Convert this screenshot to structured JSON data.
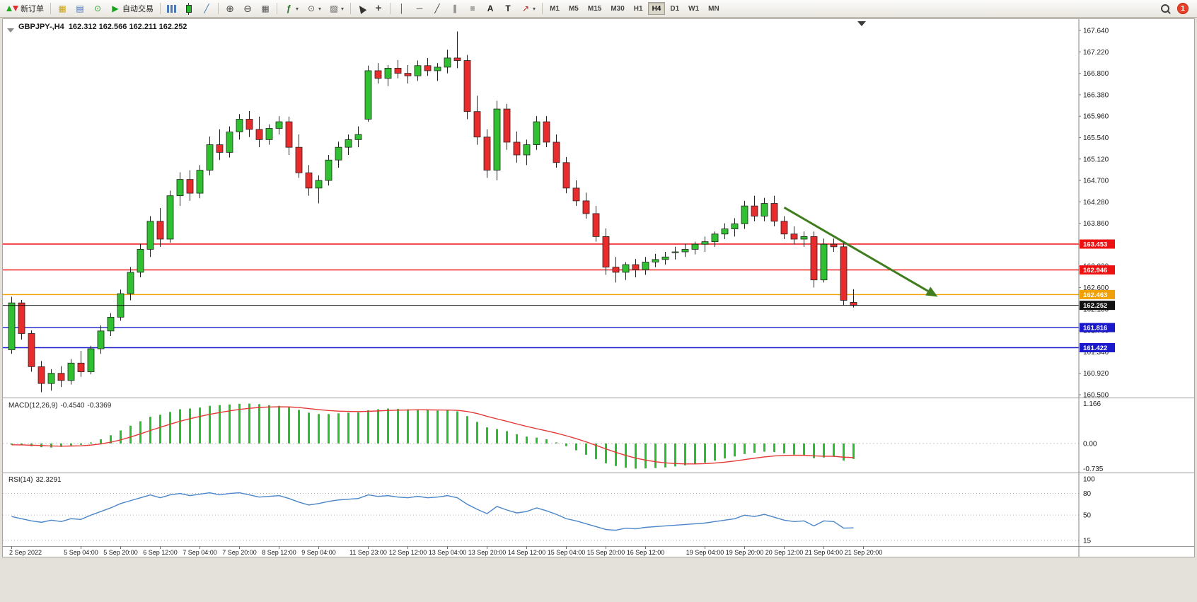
{
  "toolbar": {
    "new_order_label": "新订单",
    "autotrading_label": "自动交易",
    "timeframes": [
      "M1",
      "M5",
      "M15",
      "M30",
      "H1",
      "H4",
      "D1",
      "W1",
      "MN"
    ],
    "active_timeframe": "H4",
    "notification_count": "1",
    "icons": {
      "charts": "▦",
      "profiles": "▤",
      "history": "⊙",
      "play": "▶",
      "line_chart": "╱",
      "zoom_in": "⊕",
      "zoom_out": "⊖",
      "tile": "▦",
      "indicators": "ƒ",
      "periods": "⊙",
      "templates": "▨",
      "crosshair": "+",
      "vline": "│",
      "hline": "─",
      "trendline": "╱",
      "channel": "∥",
      "fibonacci": "≡",
      "text": "A",
      "label": "T",
      "arrows": "↗",
      "caret": "▾"
    }
  },
  "chart": {
    "symbol_title": "GBPJPY-,H4",
    "ohlc_text": "162.312 162.566 162.211 162.252"
  },
  "chart_data": {
    "type": "candlestick",
    "symbol": "GBPJPY-",
    "timeframe": "H4",
    "title": "GBPJPY-,H4 162.312 162.566 162.211 162.252",
    "up_color": "#2fc12f",
    "down_color": "#ea2b2b",
    "wick_color": "#222222",
    "price_axis": {
      "min": 160.5,
      "max": 167.64,
      "step": 0.42,
      "labels": [
        "167.640",
        "167.220",
        "166.800",
        "166.380",
        "165.960",
        "165.540",
        "165.120",
        "164.700",
        "164.280",
        "163.860",
        "163.440",
        "163.020",
        "162.600",
        "162.180",
        "161.760",
        "161.340",
        "160.920",
        "160.500"
      ]
    },
    "time_labels": [
      [
        0,
        "2 Sep 2022"
      ],
      [
        7,
        "5 Sep 04:00"
      ],
      [
        11,
        "5 Sep 20:00"
      ],
      [
        15,
        "6 Sep 12:00"
      ],
      [
        19,
        "7 Sep 04:00"
      ],
      [
        23,
        "7 Sep 20:00"
      ],
      [
        27,
        "8 Sep 12:00"
      ],
      [
        31,
        "9 Sep 04:00"
      ],
      [
        36,
        "11 Sep 23:00"
      ],
      [
        40,
        "12 Sep 12:00"
      ],
      [
        44,
        "13 Sep 04:00"
      ],
      [
        48,
        "13 Sep 20:00"
      ],
      [
        52,
        "14 Sep 12:00"
      ],
      [
        56,
        "15 Sep 04:00"
      ],
      [
        60,
        "15 Sep 20:00"
      ],
      [
        64,
        "16 Sep 12:00"
      ],
      [
        70,
        "19 Sep 04:00"
      ],
      [
        74,
        "19 Sep 20:00"
      ],
      [
        78,
        "20 Sep 12:00"
      ],
      [
        82,
        "21 Sep 04:00"
      ],
      [
        86,
        "21 Sep 20:00"
      ]
    ],
    "candles": [
      [
        161.38,
        162.42,
        161.3,
        162.3
      ],
      [
        162.3,
        162.36,
        161.58,
        161.7
      ],
      [
        161.7,
        161.76,
        160.95,
        161.05
      ],
      [
        161.05,
        161.16,
        160.55,
        160.72
      ],
      [
        160.72,
        161.0,
        160.58,
        160.92
      ],
      [
        160.92,
        161.06,
        160.65,
        160.78
      ],
      [
        160.78,
        161.2,
        160.7,
        161.12
      ],
      [
        161.12,
        161.36,
        160.85,
        160.95
      ],
      [
        160.95,
        161.46,
        160.9,
        161.4
      ],
      [
        161.4,
        161.86,
        161.3,
        161.75
      ],
      [
        161.75,
        162.1,
        161.65,
        162.02
      ],
      [
        162.02,
        162.56,
        161.95,
        162.48
      ],
      [
        162.48,
        163.0,
        162.35,
        162.9
      ],
      [
        162.9,
        163.46,
        162.8,
        163.35
      ],
      [
        163.35,
        164.0,
        163.2,
        163.9
      ],
      [
        163.9,
        164.16,
        163.4,
        163.55
      ],
      [
        163.55,
        164.5,
        163.48,
        164.4
      ],
      [
        164.4,
        164.86,
        164.2,
        164.72
      ],
      [
        164.72,
        164.9,
        164.3,
        164.45
      ],
      [
        164.45,
        165.0,
        164.35,
        164.9
      ],
      [
        164.9,
        165.56,
        164.8,
        165.4
      ],
      [
        165.4,
        165.7,
        165.1,
        165.25
      ],
      [
        165.25,
        165.76,
        165.15,
        165.65
      ],
      [
        165.65,
        166.0,
        165.5,
        165.9
      ],
      [
        165.9,
        166.06,
        165.55,
        165.7
      ],
      [
        165.7,
        165.95,
        165.35,
        165.5
      ],
      [
        165.5,
        165.8,
        165.4,
        165.72
      ],
      [
        165.72,
        165.96,
        165.6,
        165.85
      ],
      [
        165.85,
        165.95,
        165.2,
        165.35
      ],
      [
        165.35,
        165.6,
        164.75,
        164.85
      ],
      [
        164.85,
        165.0,
        164.4,
        164.55
      ],
      [
        164.55,
        164.8,
        164.25,
        164.7
      ],
      [
        164.7,
        165.2,
        164.6,
        165.1
      ],
      [
        165.1,
        165.46,
        164.95,
        165.35
      ],
      [
        165.35,
        165.6,
        165.2,
        165.5
      ],
      [
        165.5,
        165.76,
        165.35,
        165.6
      ],
      [
        165.9,
        166.95,
        165.85,
        166.85
      ],
      [
        166.85,
        167.0,
        166.6,
        166.7
      ],
      [
        166.7,
        166.96,
        166.55,
        166.9
      ],
      [
        166.9,
        167.06,
        166.7,
        166.8
      ],
      [
        166.8,
        166.96,
        166.6,
        166.75
      ],
      [
        166.75,
        167.05,
        166.65,
        166.95
      ],
      [
        166.95,
        167.1,
        166.75,
        166.85
      ],
      [
        166.85,
        167.0,
        166.65,
        166.92
      ],
      [
        166.92,
        167.26,
        166.8,
        167.1
      ],
      [
        167.1,
        167.62,
        166.9,
        167.05
      ],
      [
        167.05,
        167.16,
        165.9,
        166.05
      ],
      [
        166.05,
        166.36,
        165.4,
        165.55
      ],
      [
        165.55,
        165.7,
        164.75,
        164.9
      ],
      [
        164.9,
        166.26,
        164.7,
        166.1
      ],
      [
        166.1,
        166.2,
        165.3,
        165.45
      ],
      [
        165.45,
        165.66,
        165.05,
        165.2
      ],
      [
        165.2,
        165.5,
        165.0,
        165.4
      ],
      [
        165.4,
        165.96,
        165.3,
        165.85
      ],
      [
        165.85,
        165.96,
        165.35,
        165.45
      ],
      [
        165.45,
        165.6,
        164.95,
        165.05
      ],
      [
        165.05,
        165.16,
        164.45,
        164.55
      ],
      [
        164.55,
        164.7,
        164.2,
        164.3
      ],
      [
        164.3,
        164.46,
        163.95,
        164.05
      ],
      [
        164.05,
        164.2,
        163.5,
        163.6
      ],
      [
        163.6,
        163.76,
        162.85,
        163.0
      ],
      [
        163.0,
        163.2,
        162.7,
        162.9
      ],
      [
        162.9,
        163.1,
        162.75,
        163.05
      ],
      [
        163.05,
        163.16,
        162.8,
        162.95
      ],
      [
        162.95,
        163.2,
        162.85,
        163.1
      ],
      [
        163.1,
        163.26,
        163.0,
        163.15
      ],
      [
        163.15,
        163.3,
        163.05,
        163.2
      ],
      [
        163.3,
        163.4,
        163.15,
        163.3
      ],
      [
        163.3,
        163.46,
        163.2,
        163.35
      ],
      [
        163.35,
        163.5,
        163.25,
        163.45
      ],
      [
        163.45,
        163.6,
        163.3,
        163.5
      ],
      [
        163.5,
        163.7,
        163.4,
        163.65
      ],
      [
        163.65,
        163.86,
        163.55,
        163.75
      ],
      [
        163.75,
        163.96,
        163.6,
        163.85
      ],
      [
        163.85,
        164.3,
        163.75,
        164.2
      ],
      [
        164.2,
        164.4,
        163.9,
        164.0
      ],
      [
        164.0,
        164.36,
        163.9,
        164.25
      ],
      [
        164.25,
        164.4,
        163.8,
        163.9
      ],
      [
        163.9,
        164.0,
        163.55,
        163.65
      ],
      [
        163.65,
        163.8,
        163.45,
        163.55
      ],
      [
        163.55,
        163.7,
        163.4,
        163.6
      ],
      [
        163.6,
        163.7,
        162.6,
        162.75
      ],
      [
        162.75,
        163.56,
        162.7,
        163.45
      ],
      [
        163.45,
        163.56,
        163.3,
        163.4
      ],
      [
        163.4,
        163.5,
        162.25,
        162.35
      ],
      [
        162.31,
        162.57,
        162.21,
        162.25
      ]
    ],
    "hlines": [
      {
        "price": 163.453,
        "color": "#ee1111",
        "label": "163.453"
      },
      {
        "price": 162.946,
        "color": "#ee1111",
        "label": "162.946"
      },
      {
        "price": 162.463,
        "color": "#f0a000",
        "label": "162.463"
      },
      {
        "price": 161.816,
        "color": "#1a1acc",
        "label": "161.816"
      },
      {
        "price": 161.422,
        "color": "#1a1acc",
        "label": "161.422"
      }
    ],
    "current_price": {
      "value": 162.252,
      "label": "162.252",
      "color": "#111111"
    },
    "trend_arrow": {
      "start_idx": 78,
      "start_price": 164.17,
      "end_idx": 93.5,
      "end_price": 162.42,
      "color": "#3f7d1e"
    },
    "macd": {
      "label": "MACD(12,26,9)",
      "value_main": "-0.4540",
      "value_signal": "-0.3369",
      "histogram_color": "#2bbf2b",
      "signal_color": "#e53935",
      "axis": [
        [
          "1.166",
          1.166
        ],
        [
          "0.00",
          0
        ],
        [
          "-0.735",
          -0.735
        ]
      ],
      "values": [
        -0.04,
        -0.05,
        -0.08,
        -0.11,
        -0.12,
        -0.1,
        -0.06,
        -0.04,
        0.03,
        0.12,
        0.24,
        0.38,
        0.52,
        0.65,
        0.78,
        0.84,
        0.92,
        1.0,
        1.02,
        1.05,
        1.1,
        1.12,
        1.14,
        1.16,
        1.166,
        1.15,
        1.12,
        1.1,
        1.05,
        0.98,
        0.9,
        0.86,
        0.86,
        0.88,
        0.9,
        0.91,
        0.97,
        1.0,
        1.02,
        1.01,
        1.0,
        1.0,
        0.98,
        0.96,
        0.97,
        0.94,
        0.8,
        0.63,
        0.47,
        0.42,
        0.36,
        0.27,
        0.2,
        0.17,
        0.12,
        0.03,
        -0.08,
        -0.2,
        -0.33,
        -0.46,
        -0.58,
        -0.66,
        -0.71,
        -0.735,
        -0.73,
        -0.72,
        -0.7,
        -0.67,
        -0.64,
        -0.6,
        -0.56,
        -0.5,
        -0.44,
        -0.38,
        -0.31,
        -0.27,
        -0.24,
        -0.25,
        -0.29,
        -0.33,
        -0.35,
        -0.43,
        -0.41,
        -0.39,
        -0.5,
        -0.454
      ]
    },
    "rsi": {
      "label": "RSI(14)",
      "value": "32.3291",
      "line_color": "#4a86c8",
      "levels": [
        80,
        50,
        15
      ],
      "axis": [
        [
          "100",
          100
        ],
        [
          "80",
          80
        ],
        [
          "50",
          50
        ],
        [
          "15",
          15
        ]
      ],
      "values": [
        48,
        45,
        42,
        40,
        43,
        41,
        45,
        44,
        50,
        55,
        60,
        66,
        70,
        74,
        78,
        74,
        78,
        80,
        77,
        79,
        81,
        78,
        80,
        81,
        78,
        75,
        76,
        77,
        73,
        68,
        64,
        66,
        69,
        71,
        72,
        73,
        78,
        76,
        77,
        75,
        74,
        76,
        74,
        75,
        77,
        74,
        65,
        58,
        52,
        62,
        57,
        53,
        55,
        60,
        56,
        51,
        45,
        42,
        38,
        34,
        30,
        29,
        32,
        31,
        33,
        34,
        35,
        36,
        37,
        38,
        39,
        41,
        43,
        45,
        50,
        48,
        51,
        47,
        43,
        41,
        42,
        35,
        42,
        41,
        32,
        32.3
      ]
    }
  }
}
